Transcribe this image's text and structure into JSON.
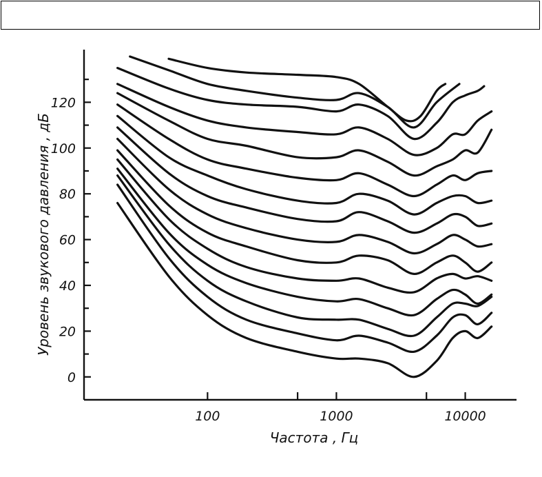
{
  "chart_data": {
    "type": "line",
    "title": "",
    "xlabel": "Частота , Гц",
    "ylabel": "Уровень звукового давления , дБ",
    "x_scale": "log",
    "xlim": [
      11,
      25000
    ],
    "ylim": [
      -10,
      143
    ],
    "x_ticks": [
      {
        "value": 100,
        "label": "100"
      },
      {
        "value": 1000,
        "label": "1000"
      },
      {
        "value": 10000,
        "label": "10000"
      }
    ],
    "x_minor_ticks": [
      500,
      5000
    ],
    "y_ticks": [
      {
        "value": 0,
        "label": "0"
      },
      {
        "value": 20,
        "label": "20"
      },
      {
        "value": 40,
        "label": "40"
      },
      {
        "value": 60,
        "label": "60"
      },
      {
        "value": 80,
        "label": "80"
      },
      {
        "value": 100,
        "label": "100"
      },
      {
        "value": 120,
        "label": "120"
      }
    ],
    "y_minor_ticks": [
      10,
      30,
      50,
      70,
      90,
      110,
      130
    ],
    "grid": false,
    "series": [
      {
        "values": [
          [
            20,
            76
          ],
          [
            50,
            44
          ],
          [
            100,
            27
          ],
          [
            200,
            17
          ],
          [
            500,
            11
          ],
          [
            1000,
            8
          ],
          [
            1500,
            8
          ],
          [
            2500,
            6
          ],
          [
            4000,
            0
          ],
          [
            6000,
            7
          ],
          [
            8000,
            17
          ],
          [
            10000,
            20
          ],
          [
            12500,
            17
          ],
          [
            16000,
            22
          ]
        ]
      },
      {
        "values": [
          [
            20,
            84
          ],
          [
            50,
            52
          ],
          [
            100,
            35
          ],
          [
            200,
            25
          ],
          [
            500,
            19
          ],
          [
            1000,
            16
          ],
          [
            1500,
            18
          ],
          [
            2500,
            15
          ],
          [
            4000,
            11
          ],
          [
            6000,
            18
          ],
          [
            8000,
            26
          ],
          [
            10000,
            27
          ],
          [
            12500,
            23
          ],
          [
            16000,
            28
          ]
        ]
      },
      {
        "values": [
          [
            20,
            88
          ],
          [
            50,
            58
          ],
          [
            100,
            42
          ],
          [
            200,
            33
          ],
          [
            500,
            26
          ],
          [
            1000,
            25
          ],
          [
            1500,
            25
          ],
          [
            2500,
            21
          ],
          [
            4000,
            18
          ],
          [
            6000,
            26
          ],
          [
            8000,
            32
          ],
          [
            10000,
            32
          ],
          [
            12500,
            31
          ],
          [
            16000,
            35
          ]
        ]
      },
      {
        "values": [
          [
            20,
            91
          ],
          [
            50,
            63
          ],
          [
            100,
            49
          ],
          [
            200,
            41
          ],
          [
            500,
            35
          ],
          [
            1000,
            33
          ],
          [
            1500,
            34
          ],
          [
            2500,
            30
          ],
          [
            4000,
            27
          ],
          [
            6000,
            34
          ],
          [
            8000,
            38
          ],
          [
            10000,
            36
          ],
          [
            12500,
            32
          ],
          [
            16000,
            36
          ]
        ]
      },
      {
        "values": [
          [
            20,
            95
          ],
          [
            50,
            69
          ],
          [
            100,
            56
          ],
          [
            200,
            48
          ],
          [
            500,
            43
          ],
          [
            1000,
            42
          ],
          [
            1500,
            43
          ],
          [
            2500,
            39
          ],
          [
            4000,
            37
          ],
          [
            6000,
            43
          ],
          [
            8000,
            45
          ],
          [
            10000,
            43
          ],
          [
            12500,
            44
          ],
          [
            16000,
            42
          ]
        ]
      },
      {
        "values": [
          [
            20,
            99
          ],
          [
            50,
            75
          ],
          [
            100,
            63
          ],
          [
            200,
            57
          ],
          [
            500,
            51
          ],
          [
            1000,
            50
          ],
          [
            1500,
            53
          ],
          [
            2500,
            51
          ],
          [
            4000,
            45
          ],
          [
            6000,
            50
          ],
          [
            8000,
            53
          ],
          [
            10000,
            50
          ],
          [
            12500,
            46
          ],
          [
            16000,
            50
          ]
        ]
      },
      {
        "values": [
          [
            20,
            104
          ],
          [
            50,
            82
          ],
          [
            100,
            71
          ],
          [
            200,
            65
          ],
          [
            500,
            60
          ],
          [
            1000,
            59
          ],
          [
            1500,
            62
          ],
          [
            2500,
            59
          ],
          [
            4000,
            54
          ],
          [
            6000,
            58
          ],
          [
            8000,
            62
          ],
          [
            10000,
            60
          ],
          [
            12500,
            57
          ],
          [
            16000,
            58
          ]
        ]
      },
      {
        "values": [
          [
            20,
            109
          ],
          [
            50,
            89
          ],
          [
            100,
            79
          ],
          [
            200,
            74
          ],
          [
            500,
            69
          ],
          [
            1000,
            68
          ],
          [
            1500,
            72
          ],
          [
            2500,
            68
          ],
          [
            4000,
            63
          ],
          [
            6000,
            67
          ],
          [
            8000,
            71
          ],
          [
            10000,
            70
          ],
          [
            12500,
            66
          ],
          [
            16000,
            67
          ]
        ]
      },
      {
        "values": [
          [
            20,
            114
          ],
          [
            50,
            96
          ],
          [
            100,
            88
          ],
          [
            200,
            82
          ],
          [
            500,
            77
          ],
          [
            1000,
            76
          ],
          [
            1500,
            80
          ],
          [
            2500,
            77
          ],
          [
            4000,
            71
          ],
          [
            6000,
            76
          ],
          [
            8000,
            79
          ],
          [
            10000,
            79
          ],
          [
            12500,
            76
          ],
          [
            16000,
            77
          ]
        ]
      },
      {
        "values": [
          [
            20,
            119
          ],
          [
            50,
            104
          ],
          [
            100,
            95
          ],
          [
            200,
            91
          ],
          [
            500,
            87
          ],
          [
            1000,
            86
          ],
          [
            1500,
            89
          ],
          [
            2500,
            84
          ],
          [
            4000,
            79
          ],
          [
            6000,
            84
          ],
          [
            8000,
            88
          ],
          [
            10000,
            86
          ],
          [
            12500,
            89
          ],
          [
            16000,
            90
          ]
        ]
      },
      {
        "values": [
          [
            20,
            124
          ],
          [
            50,
            112
          ],
          [
            100,
            104
          ],
          [
            200,
            101
          ],
          [
            500,
            96
          ],
          [
            1000,
            96
          ],
          [
            1500,
            99
          ],
          [
            2500,
            94
          ],
          [
            4000,
            88
          ],
          [
            6000,
            92
          ],
          [
            8000,
            95
          ],
          [
            10000,
            99
          ],
          [
            12500,
            98
          ],
          [
            16000,
            108
          ]
        ]
      },
      {
        "values": [
          [
            20,
            128
          ],
          [
            50,
            118
          ],
          [
            100,
            112
          ],
          [
            200,
            109
          ],
          [
            500,
            107
          ],
          [
            1000,
            106
          ],
          [
            1500,
            109
          ],
          [
            2500,
            104
          ],
          [
            4000,
            97
          ],
          [
            6000,
            100
          ],
          [
            8000,
            106
          ],
          [
            10000,
            106
          ],
          [
            12500,
            112
          ],
          [
            16000,
            116
          ]
        ]
      },
      {
        "values": [
          [
            20,
            135
          ],
          [
            50,
            126
          ],
          [
            100,
            121
          ],
          [
            200,
            119
          ],
          [
            500,
            118
          ],
          [
            1000,
            116
          ],
          [
            1500,
            119
          ],
          [
            2500,
            114
          ],
          [
            4000,
            104
          ],
          [
            6000,
            111
          ],
          [
            8000,
            120
          ],
          [
            10000,
            123
          ],
          [
            12500,
            125
          ],
          [
            14000,
            127
          ]
        ]
      },
      {
        "values": [
          [
            25,
            140
          ],
          [
            50,
            134
          ],
          [
            100,
            128
          ],
          [
            200,
            125
          ],
          [
            500,
            122
          ],
          [
            1000,
            121
          ],
          [
            1500,
            124
          ],
          [
            2500,
            118
          ],
          [
            4000,
            109
          ],
          [
            6000,
            120
          ],
          [
            9000,
            128
          ]
        ]
      },
      {
        "values": [
          [
            50,
            139
          ],
          [
            100,
            135
          ],
          [
            200,
            133
          ],
          [
            500,
            132
          ],
          [
            1000,
            131
          ],
          [
            1500,
            128
          ],
          [
            2500,
            118
          ],
          [
            3500,
            112
          ],
          [
            4500,
            114
          ],
          [
            6000,
            125
          ],
          [
            7000,
            128
          ]
        ]
      }
    ]
  }
}
